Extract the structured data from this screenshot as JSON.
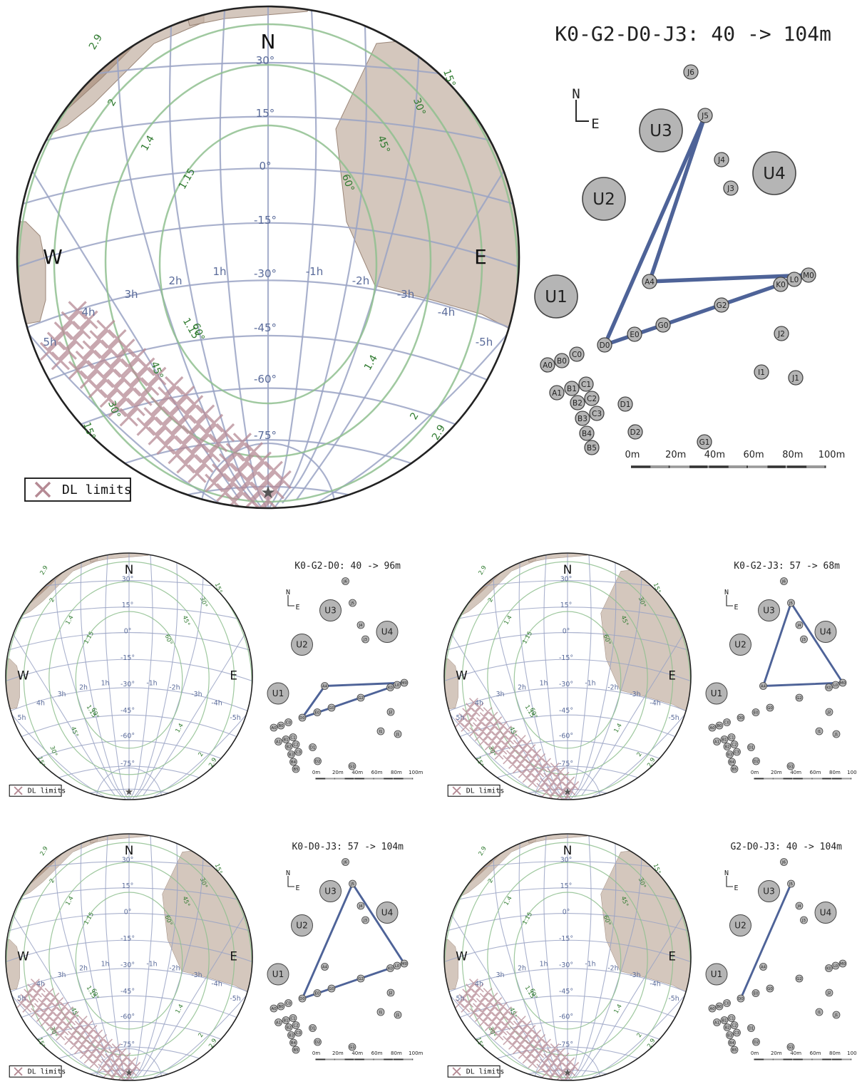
{
  "main": {
    "title": "K0-G2-D0-J3: 40 -> 104m",
    "legend_label": "DL limits",
    "triangle": [
      "J5",
      "A4",
      "M0",
      "K0",
      "G0",
      "D0"
    ]
  },
  "panels": [
    {
      "id": "p1",
      "title": "K0-G2-D0: 40 -> 96m",
      "legend_label": "DL limits",
      "triangle": [
        "A4",
        "M0",
        "K0",
        "G0",
        "D0"
      ]
    },
    {
      "id": "p2",
      "title": "K0-G2-J3: 57 -> 68m",
      "legend_label": "DL limits",
      "triangle": [
        "J5",
        "A4",
        "M0"
      ]
    },
    {
      "id": "p3",
      "title": "K0-D0-J3: 57 -> 104m",
      "legend_label": "DL limits",
      "triangle": [
        "J5",
        "M0",
        "K0",
        "D0"
      ]
    },
    {
      "id": "p4",
      "title": "G2-D0-J3: 40 -> 104m",
      "legend_label": "DL limits",
      "triangle": [
        "J5",
        "D0"
      ]
    }
  ],
  "sky": {
    "cardinals": {
      "n": "N",
      "w": "W",
      "e": "E"
    },
    "dec_labels": [
      "30°",
      "15°",
      "0°",
      "-15°",
      "-30°",
      "-45°",
      "-60°",
      "-75°"
    ],
    "ha_labels": [
      "5h",
      "4h",
      "3h",
      "2h",
      "1h",
      "-1h",
      "-2h",
      "-3h",
      "-4h",
      "-5h"
    ],
    "airmass_labels": [
      "1.15",
      "1.4",
      "2",
      "2.9"
    ],
    "elevation_labels": [
      "60°",
      "45°",
      "30°",
      "15°"
    ]
  },
  "array": {
    "north_label": "N",
    "east_label": "E",
    "telescopes": [
      "U1",
      "U2",
      "U3",
      "U4"
    ],
    "stations": [
      "J6",
      "J5",
      "J4",
      "J3",
      "J2",
      "J1",
      "I1",
      "M0",
      "L0",
      "K0",
      "G0",
      "G1",
      "G2",
      "A0",
      "B0",
      "C0",
      "A1",
      "B1",
      "C1",
      "B2",
      "C2",
      "B3",
      "C3",
      "B4",
      "B5",
      "D0",
      "D1",
      "D2",
      "E0",
      "A4"
    ],
    "scale_labels": [
      "0m",
      "20m",
      "40m",
      "60m",
      "80m",
      "100m"
    ]
  },
  "colors": {
    "grid": "#9aa3c4",
    "airmass": "#8fbf8f",
    "label_blue": "#5a6b9a",
    "label_green": "#2f7a2f",
    "shade": "#c4b1a3",
    "dl_cross": "#b58a94",
    "baseline": "#4e6398",
    "station_fill": "#b5b5b5"
  }
}
